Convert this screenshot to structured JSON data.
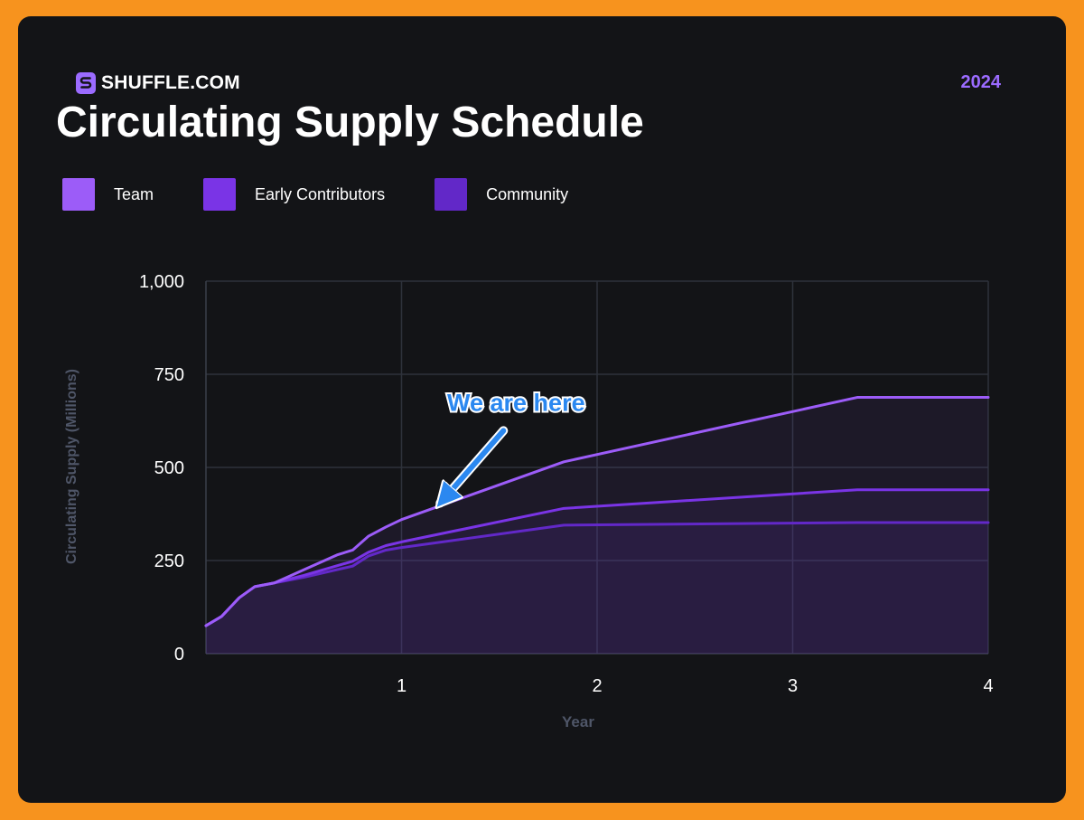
{
  "brand": {
    "name": "SHUFFLE.COM",
    "icon": "shuffle-logo-icon"
  },
  "year_tag": "2024",
  "colors": {
    "accent": "#9b6bff",
    "team": "#9c5cf8",
    "early": "#7a34e6",
    "community": "#6228c8"
  },
  "chart_data": {
    "type": "area",
    "title": "Circulating Supply Schedule",
    "xlabel": "Year",
    "ylabel": "Circulating Supply (Millions)",
    "xlim": [
      0,
      4
    ],
    "ylim": [
      0,
      1000
    ],
    "xticks": [
      1,
      2,
      3,
      4
    ],
    "xtick_labels": [
      "1",
      "2",
      "3",
      "4"
    ],
    "yticks": [
      0,
      250,
      500,
      750,
      1000
    ],
    "ytick_labels": [
      "0",
      "250",
      "500",
      "750",
      "1,000"
    ],
    "grid": true,
    "legend_position": "top-left",
    "series": [
      {
        "name": "Team",
        "color": "#9c5cf8",
        "x": [
          0,
          0.08,
          0.17,
          0.25,
          0.35,
          0.5,
          0.67,
          0.75,
          0.83,
          0.92,
          1.0,
          1.83,
          3.33,
          4.0
        ],
        "values": [
          75,
          100,
          150,
          180,
          190,
          225,
          265,
          278,
          315,
          340,
          360,
          515,
          688,
          688
        ]
      },
      {
        "name": "Early Contributors",
        "color": "#7a34e6",
        "x": [
          0,
          0.08,
          0.17,
          0.25,
          0.35,
          0.5,
          0.75,
          0.83,
          0.92,
          1.0,
          1.83,
          3.33,
          4.0
        ],
        "values": [
          75,
          100,
          150,
          180,
          190,
          210,
          248,
          272,
          290,
          300,
          390,
          440,
          440
        ]
      },
      {
        "name": "Community",
        "color": "#6228c8",
        "x": [
          0,
          0.08,
          0.17,
          0.25,
          0.35,
          0.5,
          0.75,
          0.83,
          0.92,
          1.0,
          1.83,
          3.33,
          4.0
        ],
        "values": [
          75,
          100,
          150,
          180,
          190,
          205,
          235,
          262,
          278,
          285,
          345,
          352,
          352
        ]
      }
    ],
    "annotation": {
      "text": "We are here",
      "x": 1.17,
      "y": 385,
      "color": "#2b88f0"
    }
  }
}
